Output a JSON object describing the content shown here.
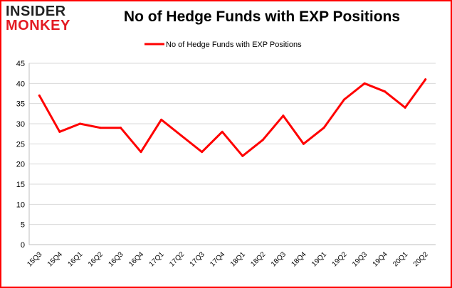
{
  "logo": {
    "line1": "INSIDER",
    "line2": "MONKEY"
  },
  "chart_data": {
    "type": "line",
    "title": "No of Hedge Funds with EXP Positions",
    "xlabel": "",
    "ylabel": "",
    "categories": [
      "15Q3",
      "15Q4",
      "16Q1",
      "16Q2",
      "16Q3",
      "16Q4",
      "17Q1",
      "17Q2",
      "17Q3",
      "17Q4",
      "18Q1",
      "18Q2",
      "18Q3",
      "18Q4",
      "19Q1",
      "19Q2",
      "19Q3",
      "19Q4",
      "20Q1",
      "20Q2"
    ],
    "series": [
      {
        "name": "No of Hedge Funds with EXP Positions",
        "color": "#ff0000",
        "values": [
          37,
          28,
          30,
          29,
          29,
          23,
          31,
          27,
          23,
          28,
          22,
          26,
          32,
          25,
          29,
          36,
          40,
          38,
          34,
          41
        ]
      }
    ],
    "ylim": [
      0,
      45
    ],
    "yticks": [
      0,
      5,
      10,
      15,
      20,
      25,
      30,
      35,
      40,
      45
    ],
    "grid": true,
    "legend": "top-center"
  }
}
